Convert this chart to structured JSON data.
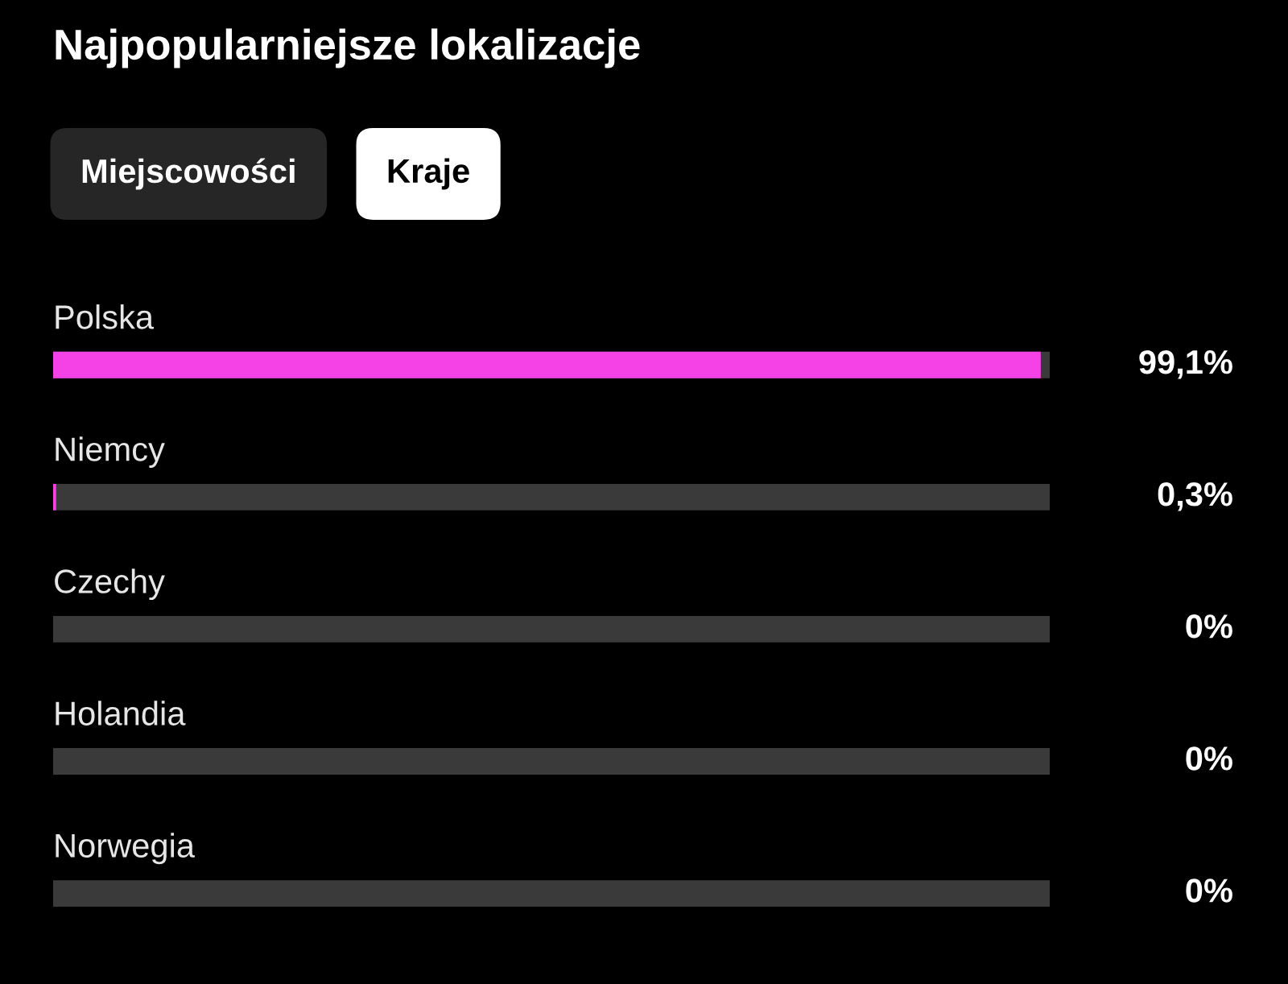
{
  "chart_data": {
    "type": "bar",
    "orientation": "horizontal",
    "title": "Najpopularniejsze lokalizacje",
    "annotations": [
      "Miejscowości",
      "Kraje"
    ],
    "categories": [
      "Polska",
      "Niemcy",
      "Czechy",
      "Holandia",
      "Norwegia"
    ],
    "series": [
      {
        "color": "#3a3a3a",
        "values": [
          100,
          100,
          100,
          100,
          100
        ]
      },
      {
        "color": "#f542e6",
        "values": [
          99.1,
          0.3,
          0,
          0,
          0
        ],
        "value_labels": [
          "99,1%",
          "0,3%",
          "0%",
          "0%",
          "0%"
        ]
      }
    ],
    "xlim": [
      0,
      100
    ]
  }
}
